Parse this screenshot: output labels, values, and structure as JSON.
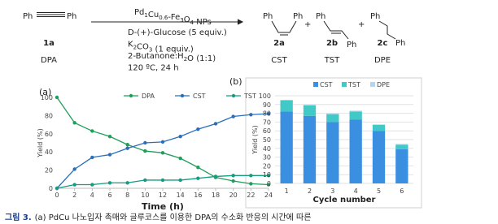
{
  "scheme": {
    "reactant": {
      "left": "Ph",
      "right": "Ph",
      "id": "1a",
      "name": "DPA"
    },
    "catalyst": [
      "Pd",
      {
        "sub": "1"
      },
      "Cu",
      {
        "sub": "0.6"
      },
      "-Fe",
      {
        "sub": "3"
      },
      "O",
      {
        "sub": "4"
      },
      " NPs"
    ],
    "conditions": [
      [
        "D-(+)-Glucose (5 equiv.)"
      ],
      [
        "K",
        {
          "sub": "2"
        },
        "CO",
        {
          "sub": "3"
        },
        " (1 equiv.)"
      ],
      [
        "2-Butanone:H",
        {
          "sub": "2"
        },
        "O (1:1)"
      ],
      [
        "120 ºC, 24 h"
      ]
    ],
    "products": [
      {
        "left": "Ph",
        "right": "Ph",
        "id": "2a",
        "name": "CST"
      },
      {
        "left": "Ph",
        "right": "Ph",
        "id": "2b",
        "name": "TST"
      },
      {
        "left": "Ph",
        "right": "Ph",
        "id": "2c",
        "name": "DPE"
      }
    ],
    "plus": "+"
  },
  "chart_data": [
    {
      "type": "line",
      "panel": "(a)",
      "xlabel": "Time (h)",
      "ylabel": "Yield (%)",
      "x": [
        0,
        2,
        4,
        6,
        8,
        10,
        12,
        14,
        16,
        18,
        20,
        22,
        24
      ],
      "xlim": [
        0,
        24
      ],
      "xticks": [
        0,
        2,
        4,
        6,
        8,
        10,
        12,
        14,
        16,
        18,
        20,
        22,
        24
      ],
      "ylim": [
        0,
        100
      ],
      "yticks": [
        0,
        20,
        40,
        60,
        80,
        100
      ],
      "grid": false,
      "legend": "top",
      "series": [
        {
          "name": "DPA",
          "color": "#1f9e5a",
          "values": [
            100,
            72,
            63,
            57,
            48,
            41,
            39,
            33,
            23,
            12,
            8,
            5,
            4
          ]
        },
        {
          "name": "CST",
          "color": "#2a6ebb",
          "values": [
            0,
            21,
            34,
            37,
            44,
            50,
            51,
            57,
            65,
            71,
            79,
            81,
            82
          ]
        },
        {
          "name": "TST",
          "color": "#169a80",
          "values": [
            0,
            4,
            4,
            6,
            6,
            9,
            9,
            9,
            11,
            13,
            14,
            14,
            14
          ]
        }
      ]
    },
    {
      "type": "stacked_bar",
      "panel": "(b)",
      "xlabel": "Cycle number",
      "ylabel": "Yield (%)",
      "categories": [
        "1",
        "2",
        "3",
        "4",
        "5",
        "6"
      ],
      "ylim": [
        0,
        100
      ],
      "yticks": [
        0,
        10,
        20,
        30,
        40,
        50,
        60,
        70,
        80,
        90,
        100
      ],
      "grid": true,
      "legend": "top",
      "series": [
        {
          "name": "CST",
          "color": "#3b8fe0",
          "values": [
            82,
            77,
            70,
            73,
            60,
            39
          ]
        },
        {
          "name": "TST",
          "color": "#40c9c6",
          "values": [
            13,
            12,
            9,
            9,
            7,
            5
          ]
        },
        {
          "name": "DPE",
          "color": "#b3d6ee",
          "values": [
            0,
            1,
            1,
            1,
            0,
            1
          ]
        }
      ]
    }
  ],
  "caption": {
    "label": "그림 3.",
    "text": "(a) PdCu 나노입자 촉매와 글루코스를 이용한 DPA의 수소화 반응의 시간에 따른"
  }
}
